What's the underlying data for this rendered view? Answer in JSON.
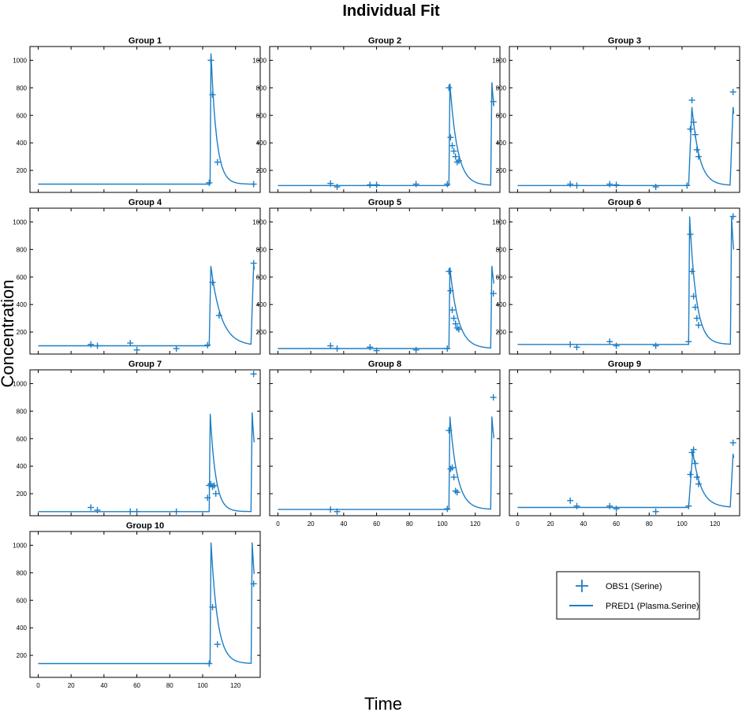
{
  "figure": {
    "title": "Individual Fit",
    "xlabel": "Time",
    "ylabel": "Concentration"
  },
  "legend": {
    "position": "bottom-right",
    "entries": [
      {
        "label": "OBS1 (Serine)",
        "marker": "plus"
      },
      {
        "label": "PRED1 (Plasma.Serine)",
        "marker": "line"
      }
    ]
  },
  "colors": {
    "series": "#1f7ec4",
    "axes": "#000000"
  },
  "chart_data": [
    {
      "type": "line",
      "title": "Group 1",
      "xlim": [
        -5,
        135
      ],
      "ylim": [
        40,
        1100
      ],
      "xticks": [
        0,
        20,
        40,
        60,
        80,
        100,
        120
      ],
      "yticks": [
        200,
        400,
        600,
        800,
        1000
      ],
      "show_x_ticklabels": false,
      "show_y_ticklabels": true,
      "obs": {
        "name": "OBS1 (Serine)",
        "x": [
          104,
          105,
          106,
          109,
          131
        ],
        "y": [
          110,
          1000,
          750,
          260,
          100
        ]
      },
      "pred": {
        "name": "PRED1 (Plasma.Serine)",
        "baseline": 100,
        "doses": [
          {
            "t": 104.5,
            "peak": 1050,
            "k": 0.3,
            "t_end": 131
          }
        ]
      }
    },
    {
      "type": "line",
      "title": "Group 2",
      "xlim": [
        -5,
        135
      ],
      "ylim": [
        40,
        1100
      ],
      "xticks": [
        0,
        20,
        40,
        60,
        80,
        100,
        120
      ],
      "yticks": [
        200,
        400,
        600,
        800,
        1000
      ],
      "show_x_ticklabels": false,
      "show_y_ticklabels": true,
      "obs": {
        "name": "OBS1 (Serine)",
        "x": [
          32,
          36,
          56,
          60,
          84,
          103,
          104,
          105,
          106,
          107,
          108,
          109,
          110,
          131
        ],
        "y": [
          105,
          80,
          95,
          95,
          100,
          100,
          800,
          440,
          380,
          340,
          300,
          260,
          270,
          700
        ]
      },
      "pred": {
        "name": "PRED1 (Plasma.Serine)",
        "baseline": 90,
        "doses": [
          {
            "t": 104,
            "peak": 830,
            "k": 0.22,
            "t_end": 129.5
          },
          {
            "t": 129.5,
            "peak": 840,
            "k": 0.22,
            "t_end": 131.5
          }
        ]
      }
    },
    {
      "type": "line",
      "title": "Group 3",
      "xlim": [
        -5,
        135
      ],
      "ylim": [
        40,
        1100
      ],
      "xticks": [
        0,
        20,
        40,
        60,
        80,
        100,
        120
      ],
      "yticks": [
        200,
        400,
        600,
        800,
        1000
      ],
      "show_x_ticklabels": false,
      "show_y_ticklabels": true,
      "obs": {
        "name": "OBS1 (Serine)",
        "x": [
          32,
          36,
          56,
          60,
          84,
          103,
          105,
          106,
          107,
          108,
          109,
          110,
          131
        ],
        "y": [
          100,
          90,
          100,
          95,
          80,
          90,
          500,
          710,
          550,
          460,
          350,
          300,
          770
        ]
      },
      "pred": {
        "name": "PRED1 (Plasma.Serine)",
        "baseline": 90,
        "doses": [
          {
            "t": 104,
            "peak": 660,
            "k": 0.22,
            "t_end": 129.5,
            "rise": 2
          },
          {
            "t": 129.5,
            "peak": 660,
            "k": 0.22,
            "t_end": 131.5,
            "rise": 1.5
          }
        ]
      }
    },
    {
      "type": "line",
      "title": "Group 4",
      "xlim": [
        -5,
        135
      ],
      "ylim": [
        40,
        1100
      ],
      "xticks": [
        0,
        20,
        40,
        60,
        80,
        100,
        120
      ],
      "yticks": [
        200,
        400,
        600,
        800,
        1000
      ],
      "show_x_ticklabels": false,
      "show_y_ticklabels": true,
      "obs": {
        "name": "OBS1 (Serine)",
        "x": [
          32,
          36,
          56,
          60,
          84,
          103,
          106,
          110,
          131
        ],
        "y": [
          110,
          100,
          120,
          70,
          80,
          105,
          560,
          320,
          700
        ]
      },
      "pred": {
        "name": "PRED1 (Plasma.Serine)",
        "baseline": 100,
        "doses": [
          {
            "t": 104,
            "peak": 680,
            "k": 0.16,
            "t_end": 129.5,
            "rise": 1
          },
          {
            "t": 129.5,
            "peak": 690,
            "k": 0.16,
            "t_end": 131.5,
            "rise": 1.5
          }
        ]
      }
    },
    {
      "type": "line",
      "title": "Group 5",
      "xlim": [
        -5,
        135
      ],
      "ylim": [
        40,
        1100
      ],
      "xticks": [
        0,
        20,
        40,
        60,
        80,
        100,
        120
      ],
      "yticks": [
        200,
        400,
        600,
        800,
        1000
      ],
      "show_x_ticklabels": false,
      "show_y_ticklabels": true,
      "obs": {
        "name": "OBS1 (Serine)",
        "x": [
          32,
          36,
          56,
          60,
          84,
          103,
          104,
          105,
          106,
          107,
          108,
          109,
          110,
          131
        ],
        "y": [
          100,
          80,
          90,
          65,
          70,
          80,
          640,
          500,
          360,
          300,
          260,
          230,
          220,
          480
        ]
      },
      "pred": {
        "name": "PRED1 (Plasma.Serine)",
        "baseline": 80,
        "doses": [
          {
            "t": 104,
            "peak": 670,
            "k": 0.2,
            "t_end": 129.5
          },
          {
            "t": 129.5,
            "peak": 680,
            "k": 0.2,
            "t_end": 131.5
          }
        ]
      }
    },
    {
      "type": "line",
      "title": "Group 6",
      "xlim": [
        -5,
        135
      ],
      "ylim": [
        40,
        1100
      ],
      "xticks": [
        0,
        20,
        40,
        60,
        80,
        100,
        120
      ],
      "yticks": [
        200,
        400,
        600,
        800,
        1000
      ],
      "show_x_ticklabels": false,
      "show_y_ticklabels": true,
      "obs": {
        "name": "OBS1 (Serine)",
        "x": [
          32,
          36,
          56,
          60,
          84,
          104,
          105,
          106,
          107,
          108,
          109,
          110,
          131
        ],
        "y": [
          110,
          90,
          130,
          100,
          100,
          130,
          910,
          640,
          460,
          380,
          300,
          250,
          1040
        ]
      },
      "pred": {
        "name": "PRED1 (Plasma.Serine)",
        "baseline": 110,
        "doses": [
          {
            "t": 104,
            "peak": 1040,
            "k": 0.25,
            "t_end": 129.5
          },
          {
            "t": 129.5,
            "peak": 1040,
            "k": 0.25,
            "t_end": 131.5
          }
        ]
      }
    },
    {
      "type": "line",
      "title": "Group 7",
      "xlim": [
        -5,
        135
      ],
      "ylim": [
        40,
        1100
      ],
      "xticks": [
        0,
        20,
        40,
        60,
        80,
        100,
        120
      ],
      "yticks": [
        200,
        400,
        600,
        800,
        1000
      ],
      "show_x_ticklabels": false,
      "show_y_ticklabels": true,
      "obs": {
        "name": "OBS1 (Serine)",
        "x": [
          32,
          36,
          56,
          60,
          84,
          103,
          104,
          105,
          106,
          107,
          108,
          131
        ],
        "y": [
          100,
          80,
          70,
          70,
          70,
          170,
          260,
          270,
          250,
          260,
          200,
          1070
        ]
      },
      "pred": {
        "name": "PRED1 (Plasma.Serine)",
        "baseline": 70,
        "doses": [
          {
            "t": 104,
            "peak": 780,
            "k": 0.3,
            "t_end": 129.5
          },
          {
            "t": 129.5,
            "peak": 790,
            "k": 0.3,
            "t_end": 131.5
          }
        ]
      }
    },
    {
      "type": "line",
      "title": "Group 8",
      "xlim": [
        -5,
        135
      ],
      "ylim": [
        40,
        1100
      ],
      "xticks": [
        0,
        20,
        40,
        60,
        80,
        100,
        120
      ],
      "yticks": [
        200,
        400,
        600,
        800,
        1000
      ],
      "show_x_ticklabels": true,
      "show_y_ticklabels": false,
      "obs": {
        "name": "OBS1 (Serine)",
        "x": [
          32,
          36,
          103,
          104,
          105,
          106,
          107,
          108,
          109,
          131
        ],
        "y": [
          85,
          70,
          90,
          660,
          380,
          390,
          320,
          220,
          210,
          900
        ]
      },
      "pred": {
        "name": "PRED1 (Plasma.Serine)",
        "baseline": 85,
        "doses": [
          {
            "t": 104,
            "peak": 760,
            "k": 0.22,
            "t_end": 129.5
          },
          {
            "t": 129.5,
            "peak": 760,
            "k": 0.22,
            "t_end": 131.5
          }
        ]
      }
    },
    {
      "type": "line",
      "title": "Group 9",
      "xlim": [
        -5,
        135
      ],
      "ylim": [
        40,
        1100
      ],
      "xticks": [
        0,
        20,
        40,
        60,
        80,
        100,
        120
      ],
      "yticks": [
        200,
        400,
        600,
        800,
        1000
      ],
      "show_x_ticklabels": true,
      "show_y_ticklabels": false,
      "obs": {
        "name": "OBS1 (Serine)",
        "x": [
          32,
          36,
          56,
          60,
          84,
          104,
          105,
          106,
          107,
          108,
          109,
          110,
          131
        ],
        "y": [
          150,
          110,
          110,
          90,
          70,
          110,
          340,
          500,
          520,
          420,
          320,
          270,
          570
        ]
      },
      "pred": {
        "name": "PRED1 (Plasma.Serine)",
        "baseline": 100,
        "doses": [
          {
            "t": 104,
            "peak": 510,
            "k": 0.2,
            "t_end": 129.5,
            "rise": 2.5
          },
          {
            "t": 129.5,
            "peak": 490,
            "k": 0.2,
            "t_end": 131.5,
            "rise": 1.5
          }
        ]
      }
    },
    {
      "type": "line",
      "title": "Group 10",
      "xlim": [
        -5,
        135
      ],
      "ylim": [
        40,
        1100
      ],
      "xticks": [
        0,
        20,
        40,
        60,
        80,
        100,
        120
      ],
      "yticks": [
        200,
        400,
        600,
        800,
        1000
      ],
      "show_x_ticklabels": true,
      "show_y_ticklabels": true,
      "obs": {
        "name": "OBS1 (Serine)",
        "x": [
          104,
          106,
          109,
          131
        ],
        "y": [
          140,
          550,
          280,
          720
        ]
      },
      "pred": {
        "name": "PRED1 (Plasma.Serine)",
        "baseline": 140,
        "doses": [
          {
            "t": 104.5,
            "peak": 1020,
            "k": 0.25,
            "t_end": 129.5
          },
          {
            "t": 129.5,
            "peak": 1020,
            "k": 0.25,
            "t_end": 131.5
          }
        ]
      }
    }
  ]
}
